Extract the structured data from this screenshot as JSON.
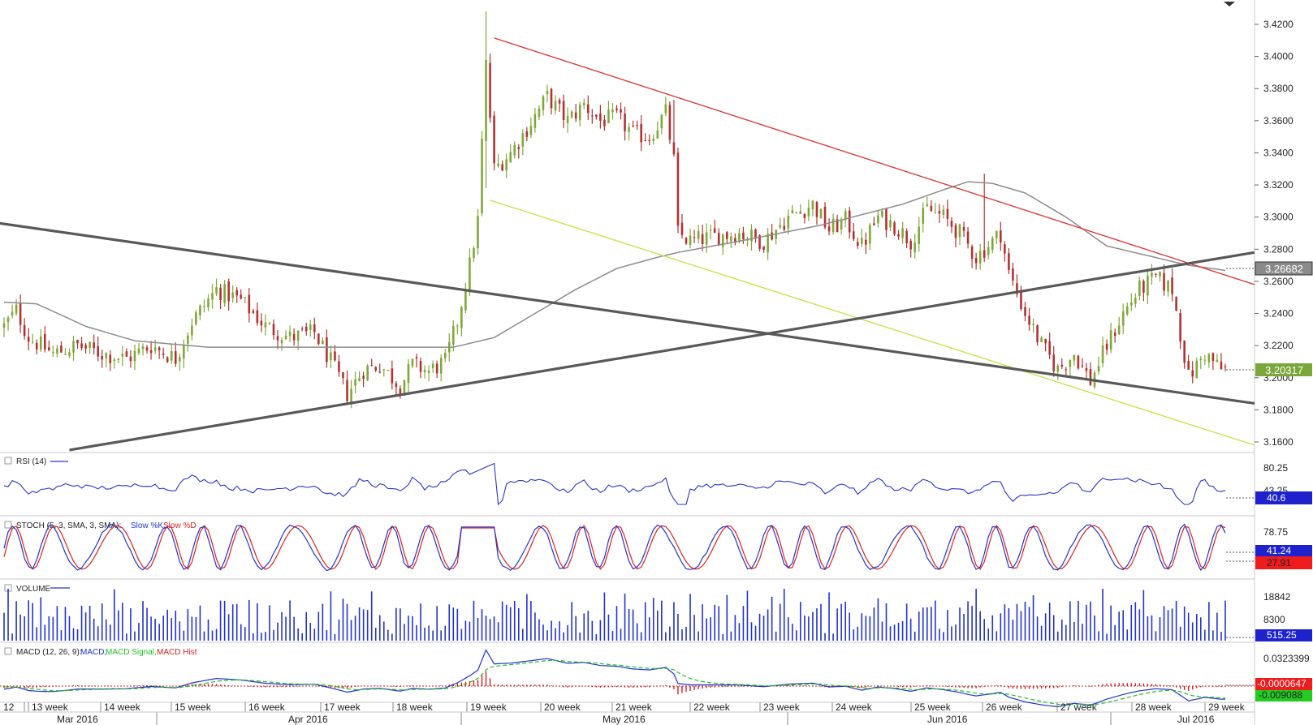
{
  "chart_data": {
    "type": "candlestick",
    "timeframe_labels": {
      "weeks": [
        "12",
        "13 week",
        "14 week",
        "15 week",
        "16 week",
        "17 week",
        "18 week",
        "19 week",
        "20 week",
        "21 week",
        "22 week",
        "23 week",
        "24 week",
        "25 week",
        "26 week",
        "27 week",
        "28 week",
        "29 week"
      ],
      "months": [
        "Mar 2016",
        "Apr 2016",
        "May 2016",
        "Jun 2016",
        "Jul 2016"
      ]
    },
    "price_axis": {
      "ticks": [
        "3.4200",
        "3.4000",
        "3.3800",
        "3.3600",
        "3.3400",
        "3.3200",
        "3.3000",
        "3.2800",
        "3.2600",
        "3.2400",
        "3.2200",
        "3.2000",
        "3.1800",
        "3.1600"
      ],
      "range": [
        3.155,
        3.43
      ]
    },
    "price_marks": {
      "sma_last": "3.26682",
      "close_last": "3.20317"
    },
    "price_path_anchors": [
      {
        "t": 0,
        "p": 3.232
      },
      {
        "t": 3,
        "p": 3.242
      },
      {
        "t": 6,
        "p": 3.225
      },
      {
        "t": 12,
        "p": 3.215
      },
      {
        "t": 18,
        "p": 3.22
      },
      {
        "t": 24,
        "p": 3.215
      },
      {
        "t": 30,
        "p": 3.212
      },
      {
        "t": 36,
        "p": 3.22
      },
      {
        "t": 42,
        "p": 3.212
      },
      {
        "t": 46,
        "p": 3.235
      },
      {
        "t": 52,
        "p": 3.255
      },
      {
        "t": 58,
        "p": 3.248
      },
      {
        "t": 64,
        "p": 3.232
      },
      {
        "t": 70,
        "p": 3.225
      },
      {
        "t": 76,
        "p": 3.228
      },
      {
        "t": 80,
        "p": 3.21
      },
      {
        "t": 84,
        "p": 3.19
      },
      {
        "t": 88,
        "p": 3.205
      },
      {
        "t": 92,
        "p": 3.208
      },
      {
        "t": 97,
        "p": 3.195
      },
      {
        "t": 100,
        "p": 3.208
      },
      {
        "t": 104,
        "p": 3.204
      },
      {
        "t": 108,
        "p": 3.21
      },
      {
        "t": 111,
        "p": 3.235
      },
      {
        "t": 114,
        "p": 3.27
      },
      {
        "t": 116,
        "p": 3.298
      },
      {
        "t": 118,
        "p": 3.395
      },
      {
        "t": 120,
        "p": 3.33
      },
      {
        "t": 124,
        "p": 3.34
      },
      {
        "t": 128,
        "p": 3.355
      },
      {
        "t": 133,
        "p": 3.375
      },
      {
        "t": 138,
        "p": 3.36
      },
      {
        "t": 142,
        "p": 3.37
      },
      {
        "t": 146,
        "p": 3.36
      },
      {
        "t": 150,
        "p": 3.362
      },
      {
        "t": 154,
        "p": 3.352
      },
      {
        "t": 158,
        "p": 3.35
      },
      {
        "t": 162,
        "p": 3.365
      },
      {
        "t": 164,
        "p": 3.335
      },
      {
        "t": 165,
        "p": 3.29
      },
      {
        "t": 168,
        "p": 3.285
      },
      {
        "t": 174,
        "p": 3.288
      },
      {
        "t": 180,
        "p": 3.29
      },
      {
        "t": 186,
        "p": 3.285
      },
      {
        "t": 192,
        "p": 3.3
      },
      {
        "t": 198,
        "p": 3.308
      },
      {
        "t": 202,
        "p": 3.292
      },
      {
        "t": 206,
        "p": 3.298
      },
      {
        "t": 210,
        "p": 3.282
      },
      {
        "t": 214,
        "p": 3.3
      },
      {
        "t": 218,
        "p": 3.295
      },
      {
        "t": 222,
        "p": 3.285
      },
      {
        "t": 226,
        "p": 3.305
      },
      {
        "t": 230,
        "p": 3.3
      },
      {
        "t": 234,
        "p": 3.29
      },
      {
        "t": 238,
        "p": 3.275
      },
      {
        "t": 242,
        "p": 3.285
      },
      {
        "t": 244,
        "p": 3.29
      },
      {
        "t": 246,
        "p": 3.265
      },
      {
        "t": 250,
        "p": 3.24
      },
      {
        "t": 254,
        "p": 3.22
      },
      {
        "t": 258,
        "p": 3.205
      },
      {
        "t": 262,
        "p": 3.215
      },
      {
        "t": 266,
        "p": 3.198
      },
      {
        "t": 270,
        "p": 3.22
      },
      {
        "t": 274,
        "p": 3.24
      },
      {
        "t": 278,
        "p": 3.255
      },
      {
        "t": 282,
        "p": 3.262
      },
      {
        "t": 286,
        "p": 3.255
      },
      {
        "t": 290,
        "p": 3.2
      },
      {
        "t": 294,
        "p": 3.215
      },
      {
        "t": 298,
        "p": 3.205
      }
    ],
    "moving_average_anchors": [
      {
        "t": 0,
        "p": 3.247
      },
      {
        "t": 8,
        "p": 3.246
      },
      {
        "t": 20,
        "p": 3.232
      },
      {
        "t": 32,
        "p": 3.223
      },
      {
        "t": 50,
        "p": 3.219
      },
      {
        "t": 70,
        "p": 3.219
      },
      {
        "t": 90,
        "p": 3.219
      },
      {
        "t": 110,
        "p": 3.219
      },
      {
        "t": 120,
        "p": 3.225
      },
      {
        "t": 130,
        "p": 3.24
      },
      {
        "t": 140,
        "p": 3.255
      },
      {
        "t": 150,
        "p": 3.268
      },
      {
        "t": 160,
        "p": 3.275
      },
      {
        "t": 165,
        "p": 3.278
      },
      {
        "t": 180,
        "p": 3.285
      },
      {
        "t": 200,
        "p": 3.295
      },
      {
        "t": 220,
        "p": 3.308
      },
      {
        "t": 230,
        "p": 3.317
      },
      {
        "t": 236,
        "p": 3.322
      },
      {
        "t": 242,
        "p": 3.321
      },
      {
        "t": 250,
        "p": 3.315
      },
      {
        "t": 260,
        "p": 3.3
      },
      {
        "t": 270,
        "p": 3.282
      },
      {
        "t": 280,
        "p": 3.276
      },
      {
        "t": 290,
        "p": 3.27
      },
      {
        "t": 299,
        "p": 3.2668
      }
    ],
    "trendlines": [
      {
        "color": "#e03030",
        "from": {
          "t": 120,
          "p": 3.4115
        },
        "to": {
          "t": 307,
          "p": 3.258
        }
      },
      {
        "color": "#c8e040",
        "from": {
          "t": 119,
          "p": 3.3105
        },
        "to": {
          "t": 307,
          "p": 3.158
        }
      },
      {
        "color": "#595959",
        "from": {
          "t": -2,
          "p": 3.2965
        },
        "to": {
          "t": 307,
          "p": 3.184
        }
      },
      {
        "color": "#595959",
        "from": {
          "t": 16,
          "p": 3.155
        },
        "to": {
          "t": 307,
          "p": 3.278
        }
      }
    ],
    "indicators": {
      "rsi": {
        "label": "RSI (14)",
        "levels": [
          "80.25",
          "43.25"
        ],
        "last": "40.6"
      },
      "stoch": {
        "label": "STOCH (5, 3, SMA, 3, SMA):",
        "k_label": "Slow %K,",
        "d_label": "Slow %D",
        "level": "78.75",
        "last_k": "41.24",
        "last_d": "27.91"
      },
      "volume": {
        "label": "VOLUME",
        "levels": [
          "18842",
          "8300"
        ],
        "last": "515.25"
      },
      "macd": {
        "label": "MACD (12, 26, 9):",
        "macd_label": "MACD,",
        "signal_label": "MACD Signal,",
        "hist_label": "MACD Hist",
        "level": "0.0323399",
        "last_hist": "-0.0000647",
        "last_signal": "-0.009088"
      }
    }
  },
  "colors": {
    "up": "#7fa838",
    "down": "#b23232",
    "rsi": "#2a35c8",
    "stoch_k": "#2233cc",
    "stoch_d": "#e02020",
    "volume": "#2233cc",
    "macd": "#2233cc",
    "macd_signal": "#20c020",
    "macd_hist": "#d02020",
    "ma": "#8c8c8c",
    "sma_box": "#888888",
    "close_box": "#7ba63a"
  }
}
